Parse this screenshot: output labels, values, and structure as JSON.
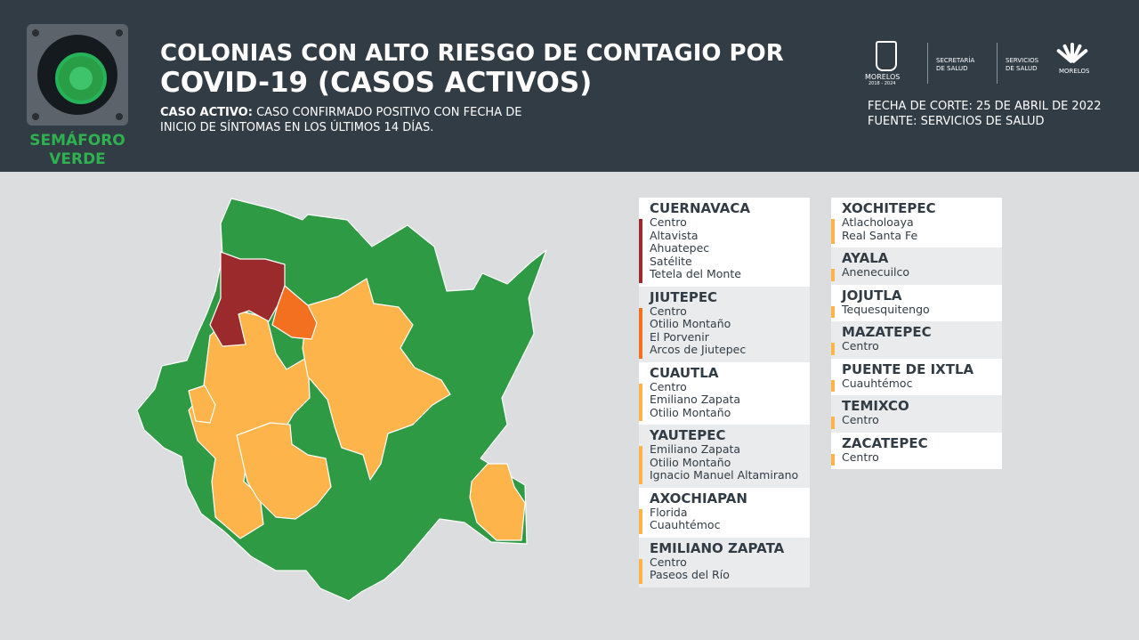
{
  "header": {
    "title_line1": "COLONIAS CON ALTO RIESGO DE CONTAGIO POR",
    "title_line2": "COVID-19 (CASOS ACTIVOS)",
    "definition_label": "CASO ACTIVO:",
    "definition_line1": " CASO CONFIRMADO POSITIVO CON FECHA DE",
    "definition_line2": "INICIO DE SÍNTOMAS EN LOS ÚLTIMOS 14 DÍAS.",
    "semaforo_line1": "SEMÁFORO",
    "semaforo_line2": "VERDE",
    "fecha_corte": "FECHA DE CORTE: 25 DE ABRIL DE 2022",
    "fuente": "FUENTE: SERVICIOS DE SALUD"
  },
  "logos": {
    "morelos": "MORELOS",
    "morelos_years": "2018 - 2024",
    "secretaria_line1": "SECRETARÍA",
    "secretaria_line2": "DE SALUD",
    "servicios_line1": "SERVICIOS",
    "servicios_line2": "DE SALUD",
    "morelos_right": "MORELOS"
  },
  "colors": {
    "header_bg": "#323c45",
    "background": "#dcdddf",
    "green": "#2e9a44",
    "yellow": "#fdb54b",
    "orange": "#f47021",
    "red": "#9b2a2d",
    "semaforo_text": "#2fb14f"
  },
  "map_legend": {
    "green": "verde",
    "yellow": "amarillo",
    "orange": "naranja",
    "red": "rojo"
  },
  "municipios_col1": [
    {
      "name": "CUERNAVACA",
      "risk": "red",
      "colonias": [
        "Centro",
        "Altavista",
        "Ahuatepec",
        "Satélite",
        "Tetela del Monte"
      ]
    },
    {
      "name": "JIUTEPEC",
      "risk": "orange",
      "colonias": [
        "Centro",
        "Otilio Montaño",
        "El Porvenir",
        "Arcos de Jiutepec"
      ]
    },
    {
      "name": "CUAUTLA",
      "risk": "yellow",
      "colonias": [
        "Centro",
        "Emiliano Zapata",
        "Otilio Montaño"
      ]
    },
    {
      "name": "YAUTEPEC",
      "risk": "yellow",
      "colonias": [
        "Emiliano Zapata",
        "Otilio Montaño",
        "Ignacio Manuel Altamirano"
      ]
    },
    {
      "name": "AXOCHIAPAN",
      "risk": "yellow",
      "colonias": [
        "Florida",
        "Cuauhtémoc"
      ]
    },
    {
      "name": "EMILIANO ZAPATA",
      "risk": "yellow",
      "colonias": [
        "Centro",
        "Paseos del Río"
      ]
    }
  ],
  "municipios_col2": [
    {
      "name": "XOCHITEPEC",
      "risk": "yellow",
      "colonias": [
        "Atlacholoaya",
        "Real Santa Fe"
      ]
    },
    {
      "name": "AYALA",
      "risk": "yellow",
      "colonias": [
        "Anenecuilco"
      ]
    },
    {
      "name": "JOJUTLA",
      "risk": "yellow",
      "colonias": [
        "Tequesquitengo"
      ]
    },
    {
      "name": "MAZATEPEC",
      "risk": "yellow",
      "colonias": [
        "Centro"
      ]
    },
    {
      "name": "PUENTE DE IXTLA",
      "risk": "yellow",
      "colonias": [
        "Cuauhtémoc"
      ]
    },
    {
      "name": "TEMIXCO",
      "risk": "yellow",
      "colonias": [
        "Centro"
      ]
    },
    {
      "name": "ZACATEPEC",
      "risk": "yellow",
      "colonias": [
        "Centro"
      ]
    }
  ]
}
